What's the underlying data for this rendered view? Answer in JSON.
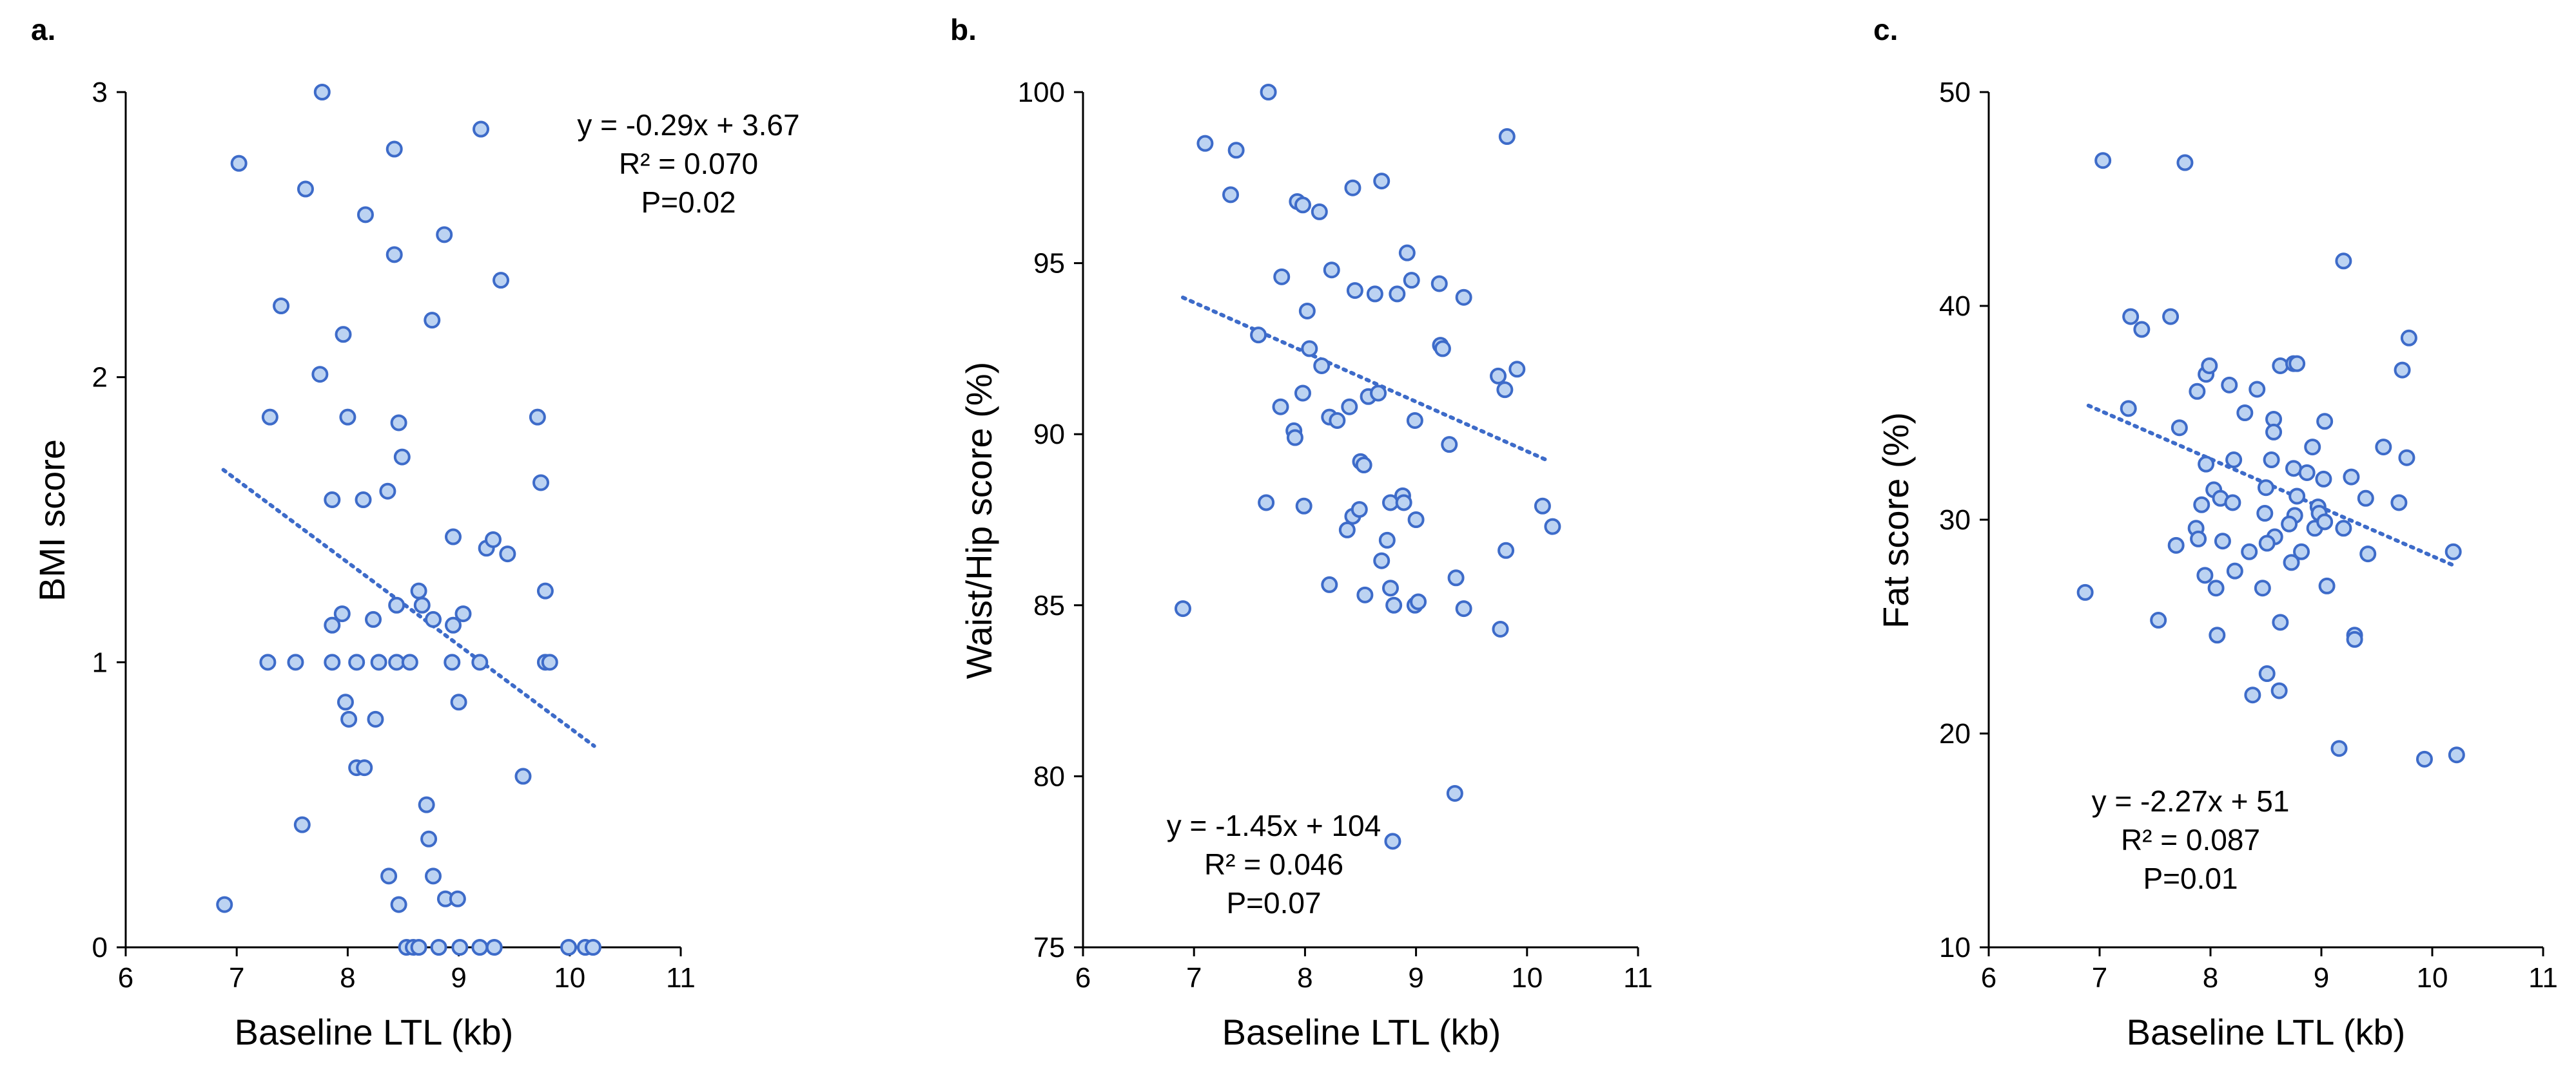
{
  "colors": {
    "marker_fill": "#bcd3f2",
    "marker_edge": "#3d6bc9",
    "trendline": "#3d6bc9",
    "axis": "#000000"
  },
  "chart_data": [
    {
      "type": "scatter",
      "panel": "a.",
      "title": "",
      "xlabel": "Baseline LTL (kb)",
      "ylabel": "BMI score",
      "xlim": [
        6,
        11
      ],
      "ylim": [
        0,
        3
      ],
      "xticks": [
        "6",
        "7",
        "8",
        "9",
        "10",
        "11"
      ],
      "yticks": [
        "0",
        "1",
        "2",
        "3"
      ],
      "trendline": {
        "slope": -0.29,
        "intercept": 3.67,
        "x_range": [
          6.88,
          10.22
        ],
        "style": "dotted"
      },
      "annotation": [
        "y = -0.29x + 3.67",
        "R² = 0.070",
        "P=0.02"
      ],
      "annotation_position": "top-right",
      "points": [
        [
          7.02,
          2.75
        ],
        [
          7.77,
          3.0
        ],
        [
          9.2,
          2.87
        ],
        [
          8.42,
          2.8
        ],
        [
          7.62,
          2.66
        ],
        [
          8.16,
          2.57
        ],
        [
          8.87,
          2.5
        ],
        [
          8.42,
          2.43
        ],
        [
          9.38,
          2.34
        ],
        [
          7.4,
          2.25
        ],
        [
          8.76,
          2.2
        ],
        [
          7.96,
          2.15
        ],
        [
          7.75,
          2.01
        ],
        [
          7.3,
          1.86
        ],
        [
          8.0,
          1.86
        ],
        [
          8.46,
          1.84
        ],
        [
          9.71,
          1.86
        ],
        [
          8.49,
          1.72
        ],
        [
          9.74,
          1.63
        ],
        [
          8.36,
          1.6
        ],
        [
          7.86,
          1.57
        ],
        [
          8.14,
          1.57
        ],
        [
          8.95,
          1.44
        ],
        [
          9.25,
          1.4
        ],
        [
          9.31,
          1.43
        ],
        [
          9.44,
          1.38
        ],
        [
          9.78,
          1.25
        ],
        [
          8.64,
          1.25
        ],
        [
          8.44,
          1.2
        ],
        [
          8.67,
          1.2
        ],
        [
          7.95,
          1.17
        ],
        [
          9.04,
          1.17
        ],
        [
          7.86,
          1.13
        ],
        [
          8.23,
          1.15
        ],
        [
          8.77,
          1.15
        ],
        [
          8.95,
          1.13
        ],
        [
          7.28,
          1.0
        ],
        [
          7.53,
          1.0
        ],
        [
          7.86,
          1.0
        ],
        [
          8.08,
          1.0
        ],
        [
          8.28,
          1.0
        ],
        [
          8.44,
          1.0
        ],
        [
          8.56,
          1.0
        ],
        [
          8.94,
          1.0
        ],
        [
          9.19,
          1.0
        ],
        [
          9.78,
          1.0
        ],
        [
          9.82,
          1.0
        ],
        [
          7.98,
          0.86
        ],
        [
          9.0,
          0.86
        ],
        [
          8.01,
          0.8
        ],
        [
          8.25,
          0.8
        ],
        [
          8.08,
          0.63
        ],
        [
          8.15,
          0.63
        ],
        [
          9.58,
          0.6
        ],
        [
          8.71,
          0.5
        ],
        [
          7.59,
          0.43
        ],
        [
          8.73,
          0.38
        ],
        [
          8.37,
          0.25
        ],
        [
          8.77,
          0.25
        ],
        [
          8.46,
          0.15
        ],
        [
          8.88,
          0.17
        ],
        [
          8.99,
          0.17
        ],
        [
          6.89,
          0.15
        ],
        [
          8.53,
          0.0
        ],
        [
          8.59,
          0.0
        ],
        [
          8.64,
          0.0
        ],
        [
          8.82,
          0.0
        ],
        [
          9.01,
          0.0
        ],
        [
          9.19,
          0.0
        ],
        [
          9.32,
          0.0
        ],
        [
          9.99,
          0.0
        ],
        [
          10.14,
          0.0
        ],
        [
          10.21,
          0.0
        ]
      ]
    },
    {
      "type": "scatter",
      "panel": "b.",
      "title": "",
      "xlabel": "Baseline LTL (kb)",
      "ylabel": "Waist/Hip score (%)",
      "xlim": [
        6,
        11
      ],
      "ylim": [
        75,
        100
      ],
      "xticks": [
        "6",
        "7",
        "8",
        "9",
        "10",
        "11"
      ],
      "yticks": [
        "75",
        "80",
        "85",
        "90",
        "95",
        "100"
      ],
      "trendline": {
        "slope": -1.45,
        "intercept": 104,
        "x_range": [
          6.9,
          10.2
        ],
        "style": "dotted"
      },
      "annotation": [
        "y = -1.45x + 104",
        "R² = 0.046",
        "P=0.07"
      ],
      "annotation_position": "bottom-left",
      "points": [
        [
          7.67,
          100.0
        ],
        [
          9.82,
          98.7
        ],
        [
          7.1,
          98.5
        ],
        [
          7.38,
          98.3
        ],
        [
          7.33,
          97.0
        ],
        [
          7.93,
          96.8
        ],
        [
          7.98,
          96.7
        ],
        [
          8.13,
          96.5
        ],
        [
          8.43,
          97.2
        ],
        [
          8.69,
          97.4
        ],
        [
          8.92,
          95.3
        ],
        [
          7.79,
          94.6
        ],
        [
          8.24,
          94.8
        ],
        [
          8.45,
          94.2
        ],
        [
          8.63,
          94.1
        ],
        [
          8.83,
          94.1
        ],
        [
          8.96,
          94.5
        ],
        [
          9.21,
          94.4
        ],
        [
          9.43,
          94.0
        ],
        [
          7.58,
          92.9
        ],
        [
          8.02,
          93.6
        ],
        [
          8.04,
          92.5
        ],
        [
          9.22,
          92.6
        ],
        [
          9.24,
          92.5
        ],
        [
          8.15,
          92.0
        ],
        [
          9.74,
          91.7
        ],
        [
          9.91,
          91.9
        ],
        [
          7.78,
          90.8
        ],
        [
          7.98,
          91.2
        ],
        [
          8.22,
          90.5
        ],
        [
          8.29,
          90.4
        ],
        [
          8.4,
          90.8
        ],
        [
          8.57,
          91.1
        ],
        [
          8.66,
          91.2
        ],
        [
          8.99,
          90.4
        ],
        [
          9.8,
          91.3
        ],
        [
          7.9,
          90.1
        ],
        [
          7.91,
          89.9
        ],
        [
          8.5,
          89.2
        ],
        [
          8.53,
          89.1
        ],
        [
          9.3,
          89.7
        ],
        [
          7.65,
          88.0
        ],
        [
          7.99,
          87.9
        ],
        [
          8.43,
          87.6
        ],
        [
          8.49,
          87.8
        ],
        [
          8.77,
          88.0
        ],
        [
          8.88,
          88.2
        ],
        [
          8.89,
          88.0
        ],
        [
          9.0,
          87.5
        ],
        [
          10.14,
          87.9
        ],
        [
          10.23,
          87.3
        ],
        [
          8.38,
          87.2
        ],
        [
          8.74,
          86.9
        ],
        [
          9.81,
          86.6
        ],
        [
          8.69,
          86.3
        ],
        [
          9.36,
          85.8
        ],
        [
          8.22,
          85.6
        ],
        [
          8.77,
          85.5
        ],
        [
          8.54,
          85.3
        ],
        [
          8.8,
          85.0
        ],
        [
          8.99,
          85.0
        ],
        [
          9.02,
          85.1
        ],
        [
          9.43,
          84.9
        ],
        [
          6.9,
          84.9
        ],
        [
          9.76,
          84.3
        ],
        [
          9.35,
          79.5
        ],
        [
          8.79,
          78.1
        ]
      ]
    },
    {
      "type": "scatter",
      "panel": "c.",
      "title": "",
      "xlabel": "Baseline LTL (kb)",
      "ylabel": "Fat score (%)",
      "xlim": [
        6,
        11
      ],
      "ylim": [
        10,
        50
      ],
      "xticks": [
        "6",
        "7",
        "8",
        "9",
        "10",
        "11"
      ],
      "yticks": [
        "10",
        "20",
        "30",
        "40",
        "50"
      ],
      "trendline": {
        "slope": -2.27,
        "intercept": 51,
        "x_range": [
          6.9,
          10.2
        ],
        "style": "dotted"
      },
      "annotation": [
        "y = -2.27x + 51",
        "R² = 0.087",
        "P=0.01"
      ],
      "annotation_position": "bottom-left",
      "points": [
        [
          7.03,
          46.8
        ],
        [
          7.77,
          46.7
        ],
        [
          9.2,
          42.1
        ],
        [
          7.28,
          39.5
        ],
        [
          7.38,
          38.9
        ],
        [
          7.64,
          39.5
        ],
        [
          9.79,
          38.5
        ],
        [
          9.73,
          37.0
        ],
        [
          7.96,
          36.8
        ],
        [
          7.99,
          37.2
        ],
        [
          8.17,
          36.3
        ],
        [
          8.42,
          36.1
        ],
        [
          8.63,
          37.2
        ],
        [
          8.75,
          37.3
        ],
        [
          8.78,
          37.3
        ],
        [
          7.88,
          36.0
        ],
        [
          7.26,
          35.2
        ],
        [
          8.31,
          35.0
        ],
        [
          8.57,
          34.7
        ],
        [
          9.03,
          34.6
        ],
        [
          9.56,
          33.4
        ],
        [
          7.72,
          34.3
        ],
        [
          8.57,
          34.1
        ],
        [
          8.92,
          33.4
        ],
        [
          9.77,
          32.9
        ],
        [
          7.96,
          32.6
        ],
        [
          8.21,
          32.8
        ],
        [
          8.55,
          32.8
        ],
        [
          8.75,
          32.4
        ],
        [
          8.87,
          32.2
        ],
        [
          9.02,
          31.9
        ],
        [
          9.27,
          32.0
        ],
        [
          9.4,
          31.0
        ],
        [
          9.7,
          30.8
        ],
        [
          8.03,
          31.4
        ],
        [
          8.09,
          31.0
        ],
        [
          8.5,
          31.5
        ],
        [
          8.78,
          31.1
        ],
        [
          7.87,
          29.6
        ],
        [
          7.92,
          30.7
        ],
        [
          8.2,
          30.8
        ],
        [
          8.49,
          30.3
        ],
        [
          8.76,
          30.2
        ],
        [
          8.97,
          30.6
        ],
        [
          8.98,
          30.3
        ],
        [
          9.2,
          29.6
        ],
        [
          7.89,
          29.1
        ],
        [
          7.69,
          28.8
        ],
        [
          8.11,
          29.0
        ],
        [
          8.58,
          29.2
        ],
        [
          8.71,
          29.8
        ],
        [
          8.94,
          29.6
        ],
        [
          9.03,
          29.9
        ],
        [
          9.42,
          28.4
        ],
        [
          10.19,
          28.5
        ],
        [
          8.35,
          28.5
        ],
        [
          8.51,
          28.9
        ],
        [
          8.82,
          28.5
        ],
        [
          7.95,
          27.4
        ],
        [
          8.22,
          27.6
        ],
        [
          8.73,
          28.0
        ],
        [
          8.05,
          26.8
        ],
        [
          6.87,
          26.6
        ],
        [
          8.47,
          26.8
        ],
        [
          9.05,
          26.9
        ],
        [
          7.53,
          25.3
        ],
        [
          8.63,
          25.2
        ],
        [
          8.06,
          24.6
        ],
        [
          9.3,
          24.6
        ],
        [
          9.3,
          24.4
        ],
        [
          8.51,
          22.8
        ],
        [
          8.38,
          21.8
        ],
        [
          8.62,
          22.0
        ],
        [
          9.16,
          19.3
        ],
        [
          9.93,
          18.8
        ],
        [
          10.22,
          19.0
        ]
      ]
    }
  ]
}
